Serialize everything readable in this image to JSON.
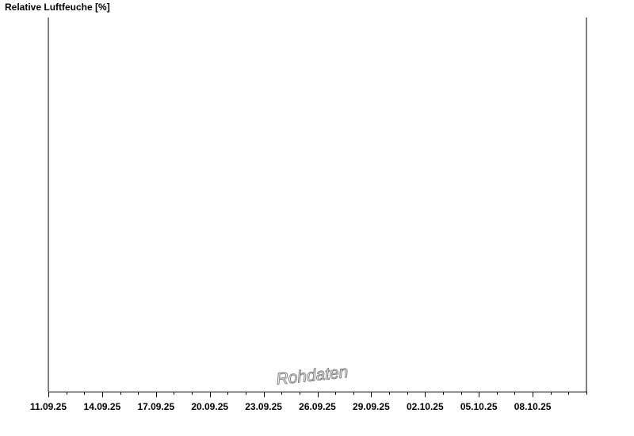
{
  "chart_data": {
    "type": "line",
    "title": "Relative Luftfeuche [%]",
    "xlabel": "",
    "ylabel": "",
    "x_range": [
      "2025-09-11",
      "2025-10-11"
    ],
    "x_tick_labels": [
      "11.09.25",
      "14.09.25",
      "17.09.25",
      "20.09.25",
      "23.09.25",
      "26.09.25",
      "29.09.25",
      "02.10.25",
      "05.10.25",
      "08.10.25"
    ],
    "major_tick_interval_days": 3,
    "minor_tick_interval_days": 1,
    "series": [],
    "grid": false,
    "watermark": "Rohdaten",
    "axis_color": "#000000",
    "watermark_color": "#808080"
  }
}
